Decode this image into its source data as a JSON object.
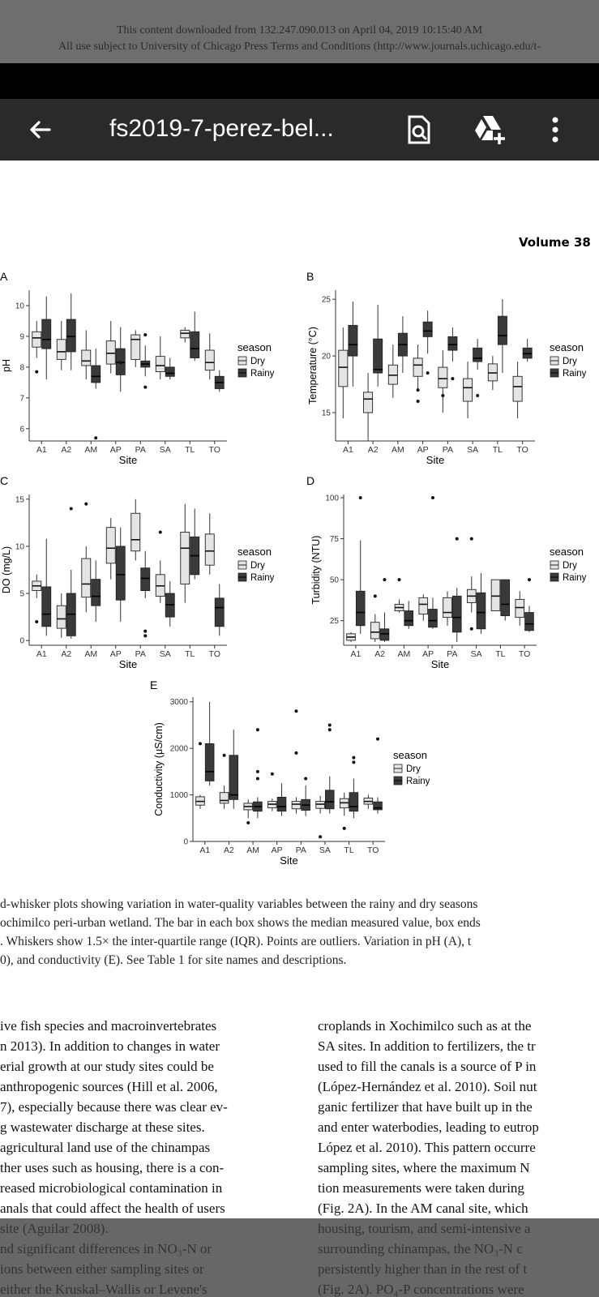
{
  "status_bar": {
    "line1": "This content downloaded from 132.247.090.013 on April 04, 2019 10:15:40 AM",
    "line2": "All use subject to University of Chicago Press Terms and Conditions (http://www.journals.uchicago.edu/t-"
  },
  "app_bar": {
    "title": "fs2019-7-perez-bel...",
    "back_icon": "arrow-left-icon",
    "search_icon": "search-document-icon",
    "drive_icon": "drive-add-icon",
    "menu_icon": "more-vert-icon"
  },
  "document": {
    "volume": "Volume 38",
    "caption_lines": [
      "d-whisker plots showing variation in water-quality variables between the rainy and dry seasons",
      "ochimilco peri-urban wetland. The bar in each box shows the median measured value, box ends",
      ". Whiskers show 1.5× the inter-quartile range (IQR). Points are outliers. Variation in pH (A), t",
      "0), and conductivity (E). See Table 1 for site names and descriptions."
    ],
    "left_column": [
      "ive fish species and macroinvertebrates",
      "n 2013). In addition to changes in water",
      "erial growth at our study sites could be",
      "anthropogenic sources (Hill et al. 2006,",
      "7), especially because there was clear ev-",
      "g wastewater discharge at these sites.",
      "agricultural land use of the chinampas",
      "ther uses such as housing, there is a con-",
      "reased microbiological contamination in",
      "anals that could affect the health of users",
      "site (Aguilar 2008).",
      "nd significant differences in NO₃-N or",
      "ions between either sampling sites or",
      "either the Kruskal–Wallis or Levene's"
    ],
    "right_column": [
      "croplands in Xochimilco such as at the",
      "SA sites. In addition to fertilizers, the tr",
      "used to fill the canals is a source of P in",
      "(López-Hernández et al. 2010). Soil nut",
      "ganic fertilizer that have built up in the",
      "and enter waterbodies, leading to eutrop",
      "López et al. 2010). This pattern occurre",
      "sampling sites, where the maximum N",
      "tion measurements were taken during",
      "(Fig. 2A). In the AM canal site, which",
      "housing, tourism, and semi-intensive a",
      "surrounding chinampas, the NO₃-N c",
      "persistently higher than in the rest of t",
      "(Fig. 2A). PO₄-P concentrations were"
    ]
  },
  "chart_data": [
    {
      "type": "box",
      "panel_label": "A",
      "ylabel": "pH",
      "xlabel": "Site",
      "categories": [
        "A1",
        "A2",
        "AM",
        "AP",
        "PA",
        "SA",
        "TL",
        "TO"
      ],
      "y_ticks": [
        6,
        7,
        8,
        9,
        10
      ],
      "ylim": [
        5.6,
        10.5
      ],
      "legend": {
        "title": "season",
        "entries": [
          "Dry",
          "Rainy"
        ],
        "placement": "right"
      },
      "series": [
        {
          "name": "Dry",
          "boxes": [
            [
              8.3,
              8.65,
              8.95,
              9.15,
              9.5
            ],
            [
              7.9,
              8.25,
              8.5,
              8.9,
              9.5
            ],
            [
              7.6,
              8.05,
              8.2,
              8.55,
              9.2
            ],
            [
              7.8,
              8.1,
              8.45,
              8.85,
              9.5
            ],
            [
              8.0,
              8.25,
              8.9,
              9.05,
              9.2
            ],
            [
              7.6,
              7.85,
              8.05,
              8.35,
              9.0
            ],
            [
              8.8,
              8.95,
              9.1,
              9.2,
              9.3
            ],
            [
              7.6,
              7.9,
              8.15,
              8.55,
              9.1
            ]
          ],
          "outliers": [
            [
              0,
              7.85
            ]
          ]
        },
        {
          "name": "Rainy",
          "boxes": [
            [
              7.6,
              8.6,
              8.9,
              9.55,
              10.3
            ],
            [
              7.9,
              8.5,
              9.0,
              9.55,
              10.4
            ],
            [
              7.3,
              7.5,
              7.7,
              8.05,
              8.6
            ],
            [
              7.2,
              7.75,
              8.15,
              8.6,
              9.3
            ],
            [
              7.7,
              8.0,
              8.1,
              8.2,
              8.7
            ],
            [
              7.6,
              7.7,
              7.8,
              8.0,
              8.3
            ],
            [
              8.2,
              8.3,
              8.6,
              9.15,
              9.8
            ],
            [
              7.2,
              7.3,
              7.5,
              7.7,
              7.9
            ]
          ],
          "outliers": [
            [
              2,
              5.7
            ],
            [
              3,
              8.15
            ],
            [
              4,
              9.05
            ],
            [
              4,
              7.35
            ]
          ]
        }
      ]
    },
    {
      "type": "box",
      "panel_label": "B",
      "ylabel": "Temperature (°C)",
      "xlabel": "Site",
      "categories": [
        "A1",
        "A2",
        "AM",
        "AP",
        "PA",
        "SA",
        "TL",
        "TO"
      ],
      "y_ticks": [
        15,
        20,
        25
      ],
      "ylim": [
        12.5,
        25.8
      ],
      "legend": {
        "title": "season",
        "entries": [
          "Dry",
          "Rainy"
        ],
        "placement": "right"
      },
      "series": [
        {
          "name": "Dry",
          "boxes": [
            [
              14.5,
              17.3,
              19.0,
              20.5,
              22.5
            ],
            [
              12.5,
              15.0,
              16.2,
              16.8,
              18.5
            ],
            [
              16.3,
              17.5,
              18.3,
              19.2,
              21.0
            ],
            [
              17.0,
              18.2,
              19.2,
              19.8,
              21.0
            ],
            [
              15.0,
              17.2,
              18.0,
              19.0,
              20.5
            ],
            [
              14.5,
              16.0,
              17.2,
              18.0,
              19.5
            ],
            [
              17.0,
              17.8,
              18.5,
              19.3,
              20.0
            ],
            [
              14.5,
              16.0,
              17.3,
              18.2,
              19.5
            ]
          ],
          "outliers": [
            [
              3,
              17.0
            ],
            [
              3,
              16.0
            ],
            [
              4,
              16.5
            ]
          ]
        },
        {
          "name": "Rainy",
          "boxes": [
            [
              17.3,
              20.0,
              21.0,
              22.7,
              24.8
            ],
            [
              17.3,
              18.5,
              18.8,
              21.5,
              24.5
            ],
            [
              18.5,
              20.0,
              21.0,
              22.0,
              23.5
            ],
            [
              20.2,
              21.7,
              22.2,
              23.0,
              24.0
            ],
            [
              19.5,
              20.5,
              21.0,
              21.7,
              22.5
            ],
            [
              18.8,
              19.5,
              19.8,
              20.7,
              21.5
            ],
            [
              18.5,
              21.0,
              21.8,
              23.5,
              25.0
            ],
            [
              19.5,
              19.8,
              20.2,
              20.7,
              21.5
            ]
          ],
          "outliers": [
            [
              3,
              18.5
            ],
            [
              4,
              18.0
            ],
            [
              5,
              16.5
            ]
          ]
        }
      ]
    },
    {
      "type": "box",
      "panel_label": "C",
      "ylabel": "DO (mg/L)",
      "xlabel": "Site",
      "categories": [
        "A1",
        "A2",
        "AM",
        "AP",
        "PA",
        "SA",
        "TL",
        "TO"
      ],
      "y_ticks": [
        0,
        5,
        10,
        15
      ],
      "ylim": [
        -0.5,
        15.5
      ],
      "legend": {
        "title": "season",
        "entries": [
          "Dry",
          "Rainy"
        ],
        "placement": "right"
      },
      "series": [
        {
          "name": "Dry",
          "boxes": [
            [
              4.5,
              5.3,
              5.8,
              6.3,
              7.0
            ],
            [
              0.3,
              1.3,
              2.3,
              3.7,
              5.0
            ],
            [
              3.0,
              4.6,
              6.0,
              8.7,
              10.0
            ],
            [
              6.5,
              8.2,
              9.8,
              12.0,
              13.0
            ],
            [
              8.5,
              9.5,
              10.7,
              13.5,
              15.0
            ],
            [
              4.0,
              4.7,
              5.8,
              7.0,
              8.5
            ],
            [
              4.0,
              6.0,
              9.8,
              11.5,
              14.5
            ],
            [
              7.0,
              8.0,
              9.5,
              11.3,
              13.5
            ]
          ],
          "outliers": [
            [
              0,
              2.0
            ],
            [
              2,
              14.5
            ],
            [
              5,
              11.5
            ]
          ]
        },
        {
          "name": "Rainy",
          "boxes": [
            [
              0.5,
              1.5,
              2.8,
              5.7,
              10.8
            ],
            [
              0.2,
              0.5,
              2.8,
              5.0,
              7.5
            ],
            [
              2.0,
              3.7,
              4.7,
              6.5,
              8.5
            ],
            [
              2.0,
              4.3,
              7.0,
              10.0,
              12.0
            ],
            [
              4.5,
              5.3,
              6.6,
              7.7,
              9.5
            ],
            [
              1.5,
              2.5,
              3.8,
              5.0,
              6.3
            ],
            [
              6.5,
              7.0,
              9.0,
              11.0,
              14.0
            ],
            [
              0.5,
              1.5,
              3.5,
              4.5,
              6.0
            ]
          ],
          "outliers": [
            [
              1,
              14.0
            ],
            [
              4,
              1.0
            ],
            [
              4,
              0.5
            ]
          ]
        }
      ]
    },
    {
      "type": "box",
      "panel_label": "D",
      "ylabel": "Turbidity (NTU)",
      "xlabel": "Site",
      "categories": [
        "A1",
        "A2",
        "AM",
        "AP",
        "PA",
        "SA",
        "TL",
        "TO"
      ],
      "y_ticks": [
        25,
        50,
        75,
        100
      ],
      "ylim": [
        10,
        102
      ],
      "legend": {
        "title": "season",
        "entries": [
          "Dry",
          "Rainy"
        ],
        "placement": "right"
      },
      "series": [
        {
          "name": "Dry",
          "boxes": [
            [
              12,
              13,
              15,
              17,
              18
            ],
            [
              12,
              14,
              18,
              24,
              29
            ],
            [
              30,
              31,
              33,
              35,
              38
            ],
            [
              25,
              29,
              35,
              39,
              41
            ],
            [
              22,
              27,
              30,
              39,
              43
            ],
            [
              30,
              36,
              40,
              44,
              52
            ],
            [
              31,
              31,
              40,
              50,
              50
            ],
            [
              22,
              27,
              33,
              38,
              43
            ]
          ],
          "outliers": [
            [
              1,
              40
            ],
            [
              2,
              50
            ],
            [
              5,
              75
            ],
            [
              5,
              20
            ]
          ]
        },
        {
          "name": "Rainy",
          "boxes": [
            [
              17,
              22,
              30,
              43,
              74
            ],
            [
              12,
              13,
              17,
              20,
              30
            ],
            [
              20,
              22,
              25,
              31,
              37
            ],
            [
              20,
              21,
              25,
              32,
              39
            ],
            [
              12,
              18,
              27,
              40,
              45
            ],
            [
              17,
              20,
              30,
              42,
              54
            ],
            [
              25,
              28,
              35,
              50,
              50
            ],
            [
              18,
              19,
              23,
              30,
              34
            ]
          ],
          "outliers": [
            [
              0,
              100
            ],
            [
              1,
              50
            ],
            [
              3,
              100
            ],
            [
              4,
              75
            ],
            [
              7,
              50
            ]
          ]
        }
      ]
    },
    {
      "type": "box",
      "panel_label": "E",
      "ylabel": "Conductivity (μS/cm)",
      "xlabel": "Site",
      "categories": [
        "A1",
        "A2",
        "AM",
        "AP",
        "PA",
        "SA",
        "TL",
        "TO"
      ],
      "y_ticks": [
        0,
        1000,
        2000,
        3000
      ],
      "ylim": [
        0,
        3100
      ],
      "legend": {
        "title": "season",
        "entries": [
          "Dry",
          "Rainy"
        ],
        "placement": "right"
      },
      "series": [
        {
          "name": "Dry",
          "boxes": [
            [
              700,
              780,
              860,
              960,
              1000
            ],
            [
              700,
              820,
              880,
              1050,
              1200
            ],
            [
              500,
              680,
              750,
              820,
              900
            ],
            [
              650,
              720,
              800,
              860,
              920
            ],
            [
              600,
              700,
              800,
              860,
              950
            ],
            [
              600,
              710,
              800,
              860,
              980
            ],
            [
              550,
              720,
              830,
              920,
              1050
            ],
            [
              700,
              800,
              860,
              930,
              1000
            ]
          ],
          "outliers": [
            [
              0,
              2100
            ],
            [
              1,
              1850
            ],
            [
              2,
              400
            ],
            [
              3,
              1450
            ],
            [
              4,
              2800
            ],
            [
              4,
              1900
            ],
            [
              5,
              100
            ],
            [
              6,
              280
            ]
          ]
        },
        {
          "name": "Rainy",
          "boxes": [
            [
              1200,
              1300,
              1500,
              2100,
              3000
            ],
            [
              700,
              900,
              1000,
              1850,
              2400
            ],
            [
              500,
              650,
              750,
              850,
              950
            ],
            [
              550,
              650,
              750,
              950,
              1250
            ],
            [
              550,
              670,
              780,
              900,
              1200
            ],
            [
              600,
              700,
              850,
              1100,
              1400
            ],
            [
              500,
              650,
              750,
              1050,
              1350
            ],
            [
              600,
              680,
              720,
              850,
              950
            ]
          ],
          "outliers": [
            [
              2,
              2400
            ],
            [
              2,
              1500
            ],
            [
              2,
              1350
            ],
            [
              4,
              1350
            ],
            [
              5,
              2500
            ],
            [
              5,
              2400
            ],
            [
              6,
              1800
            ],
            [
              6,
              1700
            ],
            [
              7,
              2200
            ]
          ]
        }
      ]
    }
  ]
}
